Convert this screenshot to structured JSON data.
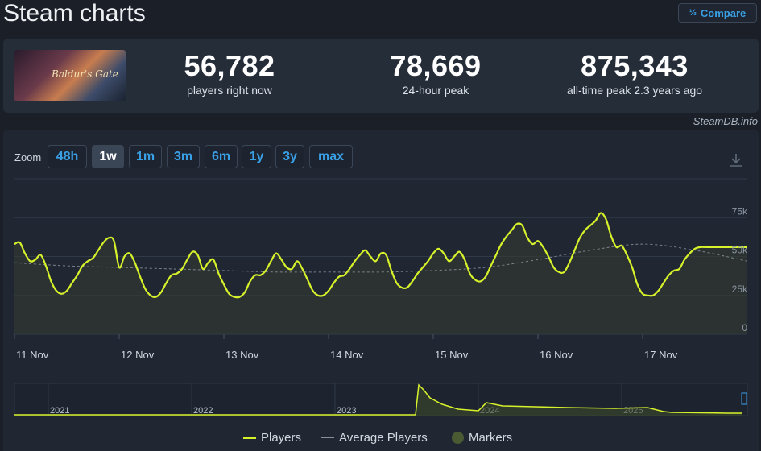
{
  "header": {
    "title": "Steam charts",
    "compare_label": "Compare",
    "compare_icon": "fraction-icon"
  },
  "game": {
    "image_caption": "Baldur's Gate"
  },
  "stats": [
    {
      "value": "56,782",
      "label": "players right now"
    },
    {
      "value": "78,669",
      "label": "24-hour peak"
    },
    {
      "value": "875,343",
      "label": "all-time peak 2.3 years ago"
    }
  ],
  "credit": "SteamDB.info",
  "zoom": {
    "label": "Zoom",
    "options": [
      "48h",
      "1w",
      "1m",
      "3m",
      "6m",
      "1y",
      "3y",
      "max"
    ],
    "selected": "1w"
  },
  "legend": {
    "players": "Players",
    "average": "Average Players",
    "markers": "Markers"
  },
  "colors": {
    "players": "#d7f22b",
    "average": "#8a9099",
    "markers": "#3d4a2a",
    "accent": "#3aa0e6"
  },
  "chart_data": {
    "type": "line",
    "x_labels": [
      "11 Nov",
      "12 Nov",
      "13 Nov",
      "14 Nov",
      "15 Nov",
      "16 Nov",
      "17 Nov"
    ],
    "y_ticks": [
      "0",
      "25k",
      "50k",
      "75k"
    ],
    "ylim": [
      0,
      100000
    ],
    "grid": true,
    "series": [
      {
        "name": "Players",
        "x": [
          0,
          0.05,
          0.1,
          0.15,
          0.2,
          0.25,
          0.3,
          0.35,
          0.4,
          0.45,
          0.5,
          0.55,
          0.6,
          0.65,
          0.7,
          0.75,
          0.8,
          0.85,
          0.9,
          0.95,
          1.0,
          1.05,
          1.1,
          1.15,
          1.2,
          1.25,
          1.3,
          1.35,
          1.4,
          1.45,
          1.5,
          1.55,
          1.6,
          1.65,
          1.7,
          1.75,
          1.8,
          1.85,
          1.9,
          1.95,
          2.0,
          2.05,
          2.1,
          2.15,
          2.2,
          2.25,
          2.3,
          2.35,
          2.4,
          2.45,
          2.5,
          2.55,
          2.6,
          2.65,
          2.7,
          2.75,
          2.8,
          2.85,
          2.9,
          2.95,
          3.0,
          3.05,
          3.1,
          3.15,
          3.2,
          3.25,
          3.3,
          3.35,
          3.4,
          3.45,
          3.5,
          3.55,
          3.6,
          3.65,
          3.7,
          3.75,
          3.8,
          3.85,
          3.9,
          3.95,
          4.0,
          4.05,
          4.1,
          4.15,
          4.2,
          4.25,
          4.3,
          4.35,
          4.4,
          4.45,
          4.5,
          4.55,
          4.6,
          4.65,
          4.7,
          4.75,
          4.8,
          4.85,
          4.9,
          4.95,
          5.0,
          5.05,
          5.1,
          5.15,
          5.2,
          5.25,
          5.3,
          5.35,
          5.4,
          5.45,
          5.5,
          5.55,
          5.6,
          5.65,
          5.7,
          5.75,
          5.8,
          5.85,
          5.9,
          5.95,
          6.0,
          6.05,
          6.1,
          6.15,
          6.2,
          6.25,
          6.3,
          6.35,
          6.4,
          6.45,
          6.5,
          6.55,
          6.6,
          6.65,
          6.7,
          6.75,
          6.8,
          6.85,
          6.9,
          6.95,
          7.0,
          7.05,
          7.1,
          7.15
        ],
        "values": [
          58000,
          59000,
          52000,
          47000,
          48000,
          51000,
          44000,
          34000,
          28000,
          26000,
          28000,
          33000,
          38000,
          44000,
          47000,
          49000,
          54000,
          59000,
          62000,
          60000,
          43000,
          50000,
          52000,
          46000,
          37000,
          29000,
          25000,
          24000,
          27000,
          33000,
          38000,
          39000,
          42000,
          48000,
          53000,
          51000,
          42000,
          46000,
          48000,
          39000,
          32000,
          26000,
          24000,
          24000,
          27000,
          34000,
          38000,
          38000,
          41000,
          47000,
          52000,
          48000,
          43000,
          42000,
          47000,
          42000,
          35000,
          28000,
          25000,
          25000,
          28000,
          33000,
          37000,
          38000,
          42000,
          47000,
          51000,
          54000,
          50000,
          47000,
          52000,
          51000,
          41000,
          33000,
          30000,
          30000,
          34000,
          39000,
          43000,
          47000,
          52000,
          55000,
          52000,
          47000,
          50000,
          53000,
          48000,
          39000,
          35000,
          34000,
          37000,
          44000,
          51000,
          58000,
          63000,
          67000,
          71000,
          70000,
          62000,
          58000,
          60000,
          56000,
          50000,
          43000,
          40000,
          40000,
          46000,
          54000,
          62000,
          67000,
          70000,
          73000,
          78000,
          74000,
          63000,
          56000,
          57000,
          51000,
          43000,
          32000,
          26000,
          25000,
          25000,
          28000,
          33000,
          38000,
          41000,
          42000,
          48000,
          52000,
          55000,
          56000,
          56000,
          56000,
          56000,
          56000,
          56000,
          56000,
          56000,
          56000,
          56000,
          56000,
          56000,
          56000
        ]
      },
      {
        "name": "Average Players",
        "x": [
          0,
          0.5,
          1,
          1.5,
          2,
          2.5,
          3,
          3.5,
          4,
          4.5,
          5,
          5.5,
          6,
          6.5,
          7
        ],
        "values": [
          46000,
          44000,
          43000,
          42000,
          41000,
          40000,
          40000,
          40000,
          41000,
          43000,
          48000,
          54000,
          58000,
          54000,
          47000
        ]
      }
    ],
    "overview": {
      "x_labels": [
        "2021",
        "2022",
        "2023",
        "2024",
        "2025"
      ],
      "note": "full history, spike at 2023 launch"
    }
  }
}
